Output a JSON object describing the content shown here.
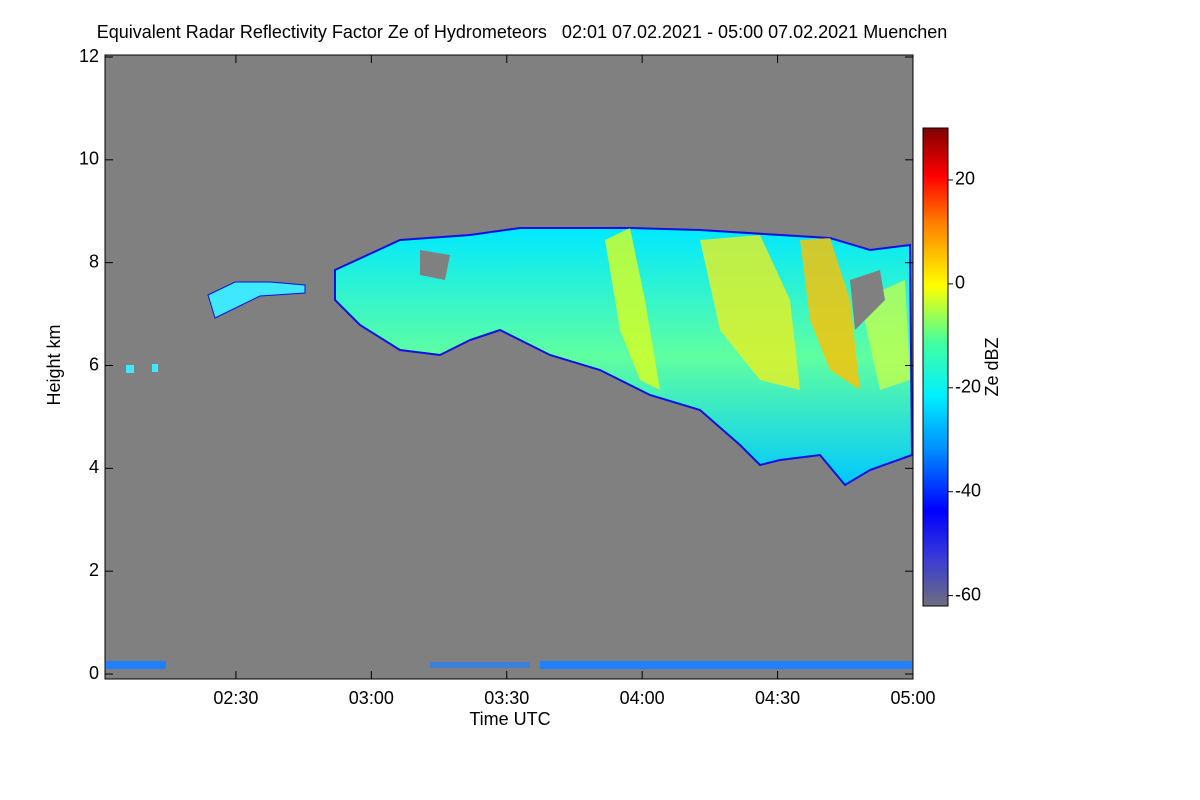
{
  "chart_data": {
    "type": "heatmap",
    "title": "Equivalent Radar Reflectivity Factor Ze of Hydrometeors   02:01 07.02.2021 - 05:00 07.02.2021 Muenchen",
    "xlabel": "Time UTC",
    "ylabel": "Height km",
    "xlim": [
      121,
      300
    ],
    "xticks": [
      {
        "value": 150,
        "label": "02:30"
      },
      {
        "value": 180,
        "label": "03:00"
      },
      {
        "value": 210,
        "label": "03:30"
      },
      {
        "value": 240,
        "label": "04:00"
      },
      {
        "value": 270,
        "label": "04:30"
      },
      {
        "value": 300,
        "label": "05:00"
      }
    ],
    "ylim": [
      0,
      12
    ],
    "yticks": [
      0,
      2,
      4,
      6,
      8,
      10,
      12
    ],
    "colorbar": {
      "label": "Ze dBZ",
      "lim": [
        -62,
        30
      ],
      "ticks": [
        -60,
        -40,
        -20,
        0,
        20
      ]
    }
  }
}
